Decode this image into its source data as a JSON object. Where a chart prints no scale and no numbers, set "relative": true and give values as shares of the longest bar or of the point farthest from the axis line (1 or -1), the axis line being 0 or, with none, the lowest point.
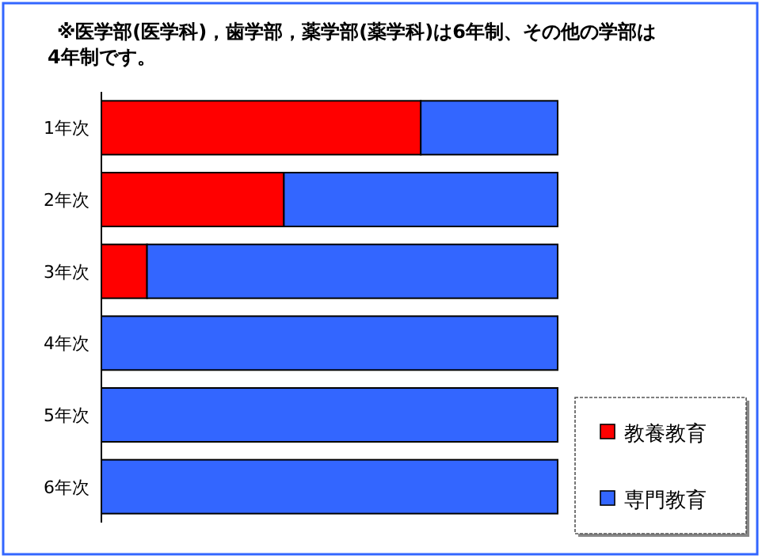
{
  "chart_data": {
    "type": "bar",
    "orientation": "horizontal",
    "stacked": true,
    "relative": true,
    "title": "※医学部(医学科)，歯学部，薬学部(薬学科)は6年制、その他の学部は4年制です。",
    "categories": [
      "1年次",
      "2年次",
      "3年次",
      "4年次",
      "5年次",
      "6年次"
    ],
    "series": [
      {
        "name": "教養教育",
        "color": "#ff0000",
        "values": [
          0.7,
          0.4,
          0.1,
          0,
          0,
          0
        ]
      },
      {
        "name": "専門教育",
        "color": "#3366ff",
        "values": [
          0.3,
          0.6,
          0.9,
          1,
          1,
          1
        ]
      }
    ],
    "legend": "bottom right"
  }
}
